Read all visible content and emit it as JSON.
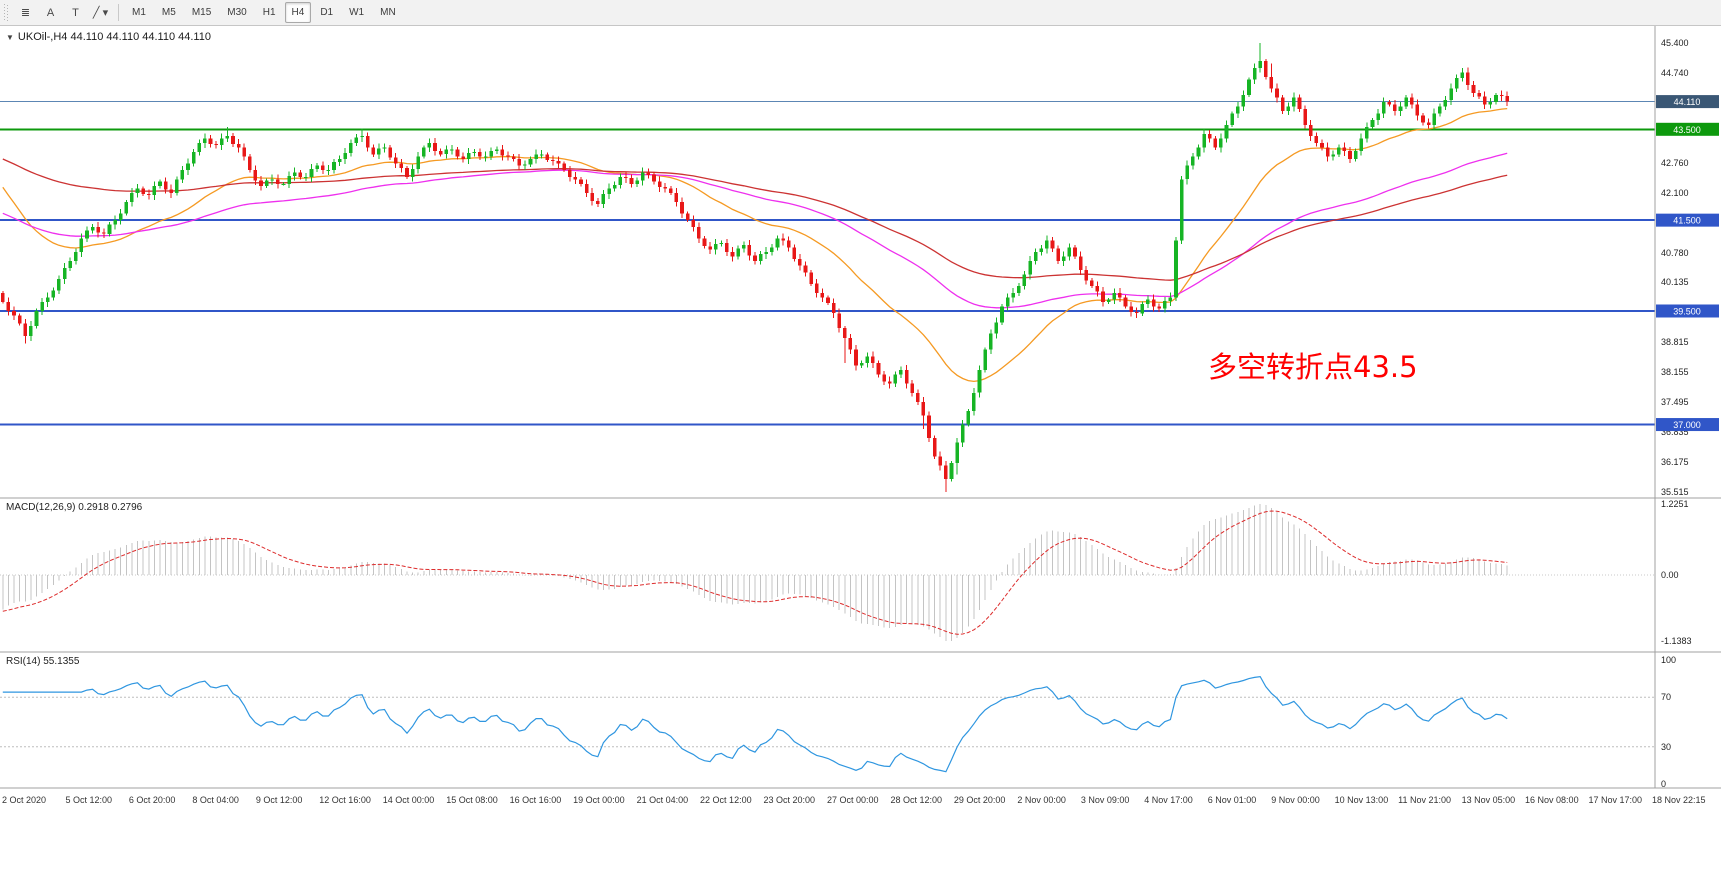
{
  "toolbar": {
    "tools": [
      {
        "name": "chart-bars-icon",
        "glyph": "≣"
      },
      {
        "name": "text-annotation-icon",
        "glyph": "A"
      },
      {
        "name": "text-label-icon",
        "glyph": "T"
      },
      {
        "name": "draw-tools-icon",
        "glyph": "╱ ▾"
      }
    ],
    "timeframes": [
      "M1",
      "M5",
      "M15",
      "M30",
      "H1",
      "H4",
      "D1",
      "W1",
      "MN"
    ],
    "active_timeframe": "H4"
  },
  "main_chart": {
    "collapse_glyph": "▼",
    "symbol_label": "UKOil-,H4 44.110 44.110 44.110 44.110",
    "annotation": "多空转折点43.5",
    "annotation_color": "#ff0000",
    "colors": {
      "up": "#16b424",
      "down": "#e81717",
      "ma_fast": "#f59a23",
      "ma_mid": "#ee30ee",
      "ma_slow": "#cc3333",
      "price_line": "#5c86b4",
      "price_tag_bg": "#3a5775"
    },
    "price_axis_ticks": [
      "45.400",
      "44.740",
      "44.075",
      "43.425",
      "42.760",
      "42.100",
      "41.445",
      "40.780",
      "40.135",
      "39.470",
      "38.815",
      "38.155",
      "37.495",
      "36.835",
      "36.175",
      "35.515"
    ],
    "levels": [
      {
        "value": 43.5,
        "label": "43.500",
        "color": "#0d990d",
        "width": 2
      },
      {
        "value": 41.5,
        "label": "41.500",
        "color": "#3056c8",
        "width": 2
      },
      {
        "value": 39.5,
        "label": "39.500",
        "color": "#3056c8",
        "width": 2
      },
      {
        "value": 37.0,
        "label": "37.000",
        "color": "#3056c8",
        "width": 2
      }
    ],
    "current_price": {
      "value": 44.11,
      "label": "44.110"
    }
  },
  "macd_panel": {
    "label": "MACD(12,26,9) 0.2918 0.2796",
    "axis_ticks": [
      "1.2251",
      "0.00",
      "-1.1383"
    ],
    "histogram_color": "#c4c4c4",
    "signal_color": "#dd2c2c"
  },
  "rsi_panel": {
    "label": "RSI(14) 55.1355",
    "axis_ticks": [
      "100",
      "70",
      "30",
      "0"
    ],
    "line_color": "#2f96e0",
    "level_lines": [
      70,
      30
    ]
  },
  "time_axis": [
    "2 Oct 2020",
    "5 Oct 12:00",
    "6 Oct 20:00",
    "8 Oct 04:00",
    "9 Oct 12:00",
    "12 Oct 16:00",
    "14 Oct 00:00",
    "15 Oct 08:00",
    "16 Oct 16:00",
    "19 Oct 00:00",
    "21 Oct 04:00",
    "22 Oct 12:00",
    "23 Oct 20:00",
    "27 Oct 00:00",
    "28 Oct 12:00",
    "29 Oct 20:00",
    "2 Nov 00:00",
    "3 Nov 09:00",
    "4 Nov 17:00",
    "6 Nov 01:00",
    "9 Nov 00:00",
    "10 Nov 13:00",
    "11 Nov 21:00",
    "13 Nov 05:00",
    "16 Nov 08:00",
    "17 Nov 17:00",
    "18 Nov 22:15"
  ],
  "chart_data": {
    "type": "candlestick",
    "symbol": "UKOil-",
    "timeframe": "H4",
    "title": "UKOil-,H4",
    "ylim": [
      35.515,
      45.4
    ],
    "first_open": 39.9,
    "closes": [
      39.7,
      39.4,
      38.95,
      39.5,
      39.8,
      40.2,
      40.6,
      41.1,
      41.35,
      41.2,
      41.5,
      41.9,
      42.2,
      42.05,
      42.35,
      42.1,
      42.6,
      43.0,
      43.3,
      43.15,
      43.35,
      43.1,
      42.6,
      42.25,
      42.4,
      42.3,
      42.55,
      42.45,
      42.7,
      42.6,
      42.85,
      43.2,
      43.35,
      42.95,
      43.1,
      42.75,
      42.45,
      42.9,
      43.2,
      42.95,
      43.05,
      42.85,
      43.0,
      42.9,
      43.05,
      42.9,
      42.7,
      42.85,
      42.95,
      42.8,
      42.6,
      42.4,
      42.1,
      41.85,
      42.2,
      42.45,
      42.3,
      42.55,
      42.35,
      42.2,
      41.9,
      41.5,
      41.1,
      40.85,
      41.0,
      40.7,
      40.95,
      40.6,
      40.8,
      41.1,
      40.9,
      40.5,
      40.1,
      39.8,
      39.45,
      38.9,
      38.3,
      38.5,
      38.1,
      37.9,
      38.2,
      37.7,
      37.2,
      36.3,
      35.8,
      36.6,
      37.3,
      38.2,
      39.0,
      39.6,
      39.9,
      40.3,
      40.8,
      41.05,
      40.6,
      40.9,
      40.4,
      40.05,
      39.7,
      39.9,
      39.6,
      39.45,
      39.75,
      39.55,
      39.8,
      42.4,
      42.9,
      43.4,
      43.1,
      43.6,
      44.0,
      44.6,
      45.0,
      44.4,
      43.9,
      44.2,
      43.6,
      43.2,
      42.9,
      43.1,
      42.85,
      43.3,
      43.7,
      44.1,
      43.9,
      44.2,
      43.8,
      43.6,
      44.0,
      44.4,
      44.75,
      44.3,
      44.05,
      44.25,
      44.11
    ],
    "wick_overrides": {
      "4": {
        "l": 38.78
      },
      "40": {
        "h": 43.55
      },
      "64": {
        "h": 43.52
      },
      "150": {
        "l": 38.35
      },
      "164": {
        "l": 36.9
      },
      "168": {
        "l": 35.52
      },
      "170": {
        "l": 35.9
      },
      "224": {
        "h": 45.4
      },
      "226": {
        "h": 44.95
      },
      "260": {
        "h": 44.85
      }
    },
    "hlines": [
      43.5,
      41.5,
      39.5,
      37.0
    ],
    "current_price": 44.11,
    "moving_averages": [
      {
        "name": "fast",
        "period": 30,
        "seed": 42.4
      },
      {
        "name": "mid",
        "period": 80,
        "seed": 41.7
      },
      {
        "name": "slow",
        "period": 120,
        "seed": 42.9
      }
    ],
    "macd": {
      "params": [
        12,
        26,
        9
      ],
      "last": 0.2918,
      "last_signal": 0.2796,
      "range": [
        -1.1383,
        1.2251
      ]
    },
    "rsi": {
      "period": 14,
      "last": 55.1355,
      "range": [
        0,
        100
      ],
      "levels": [
        30,
        70
      ]
    }
  }
}
